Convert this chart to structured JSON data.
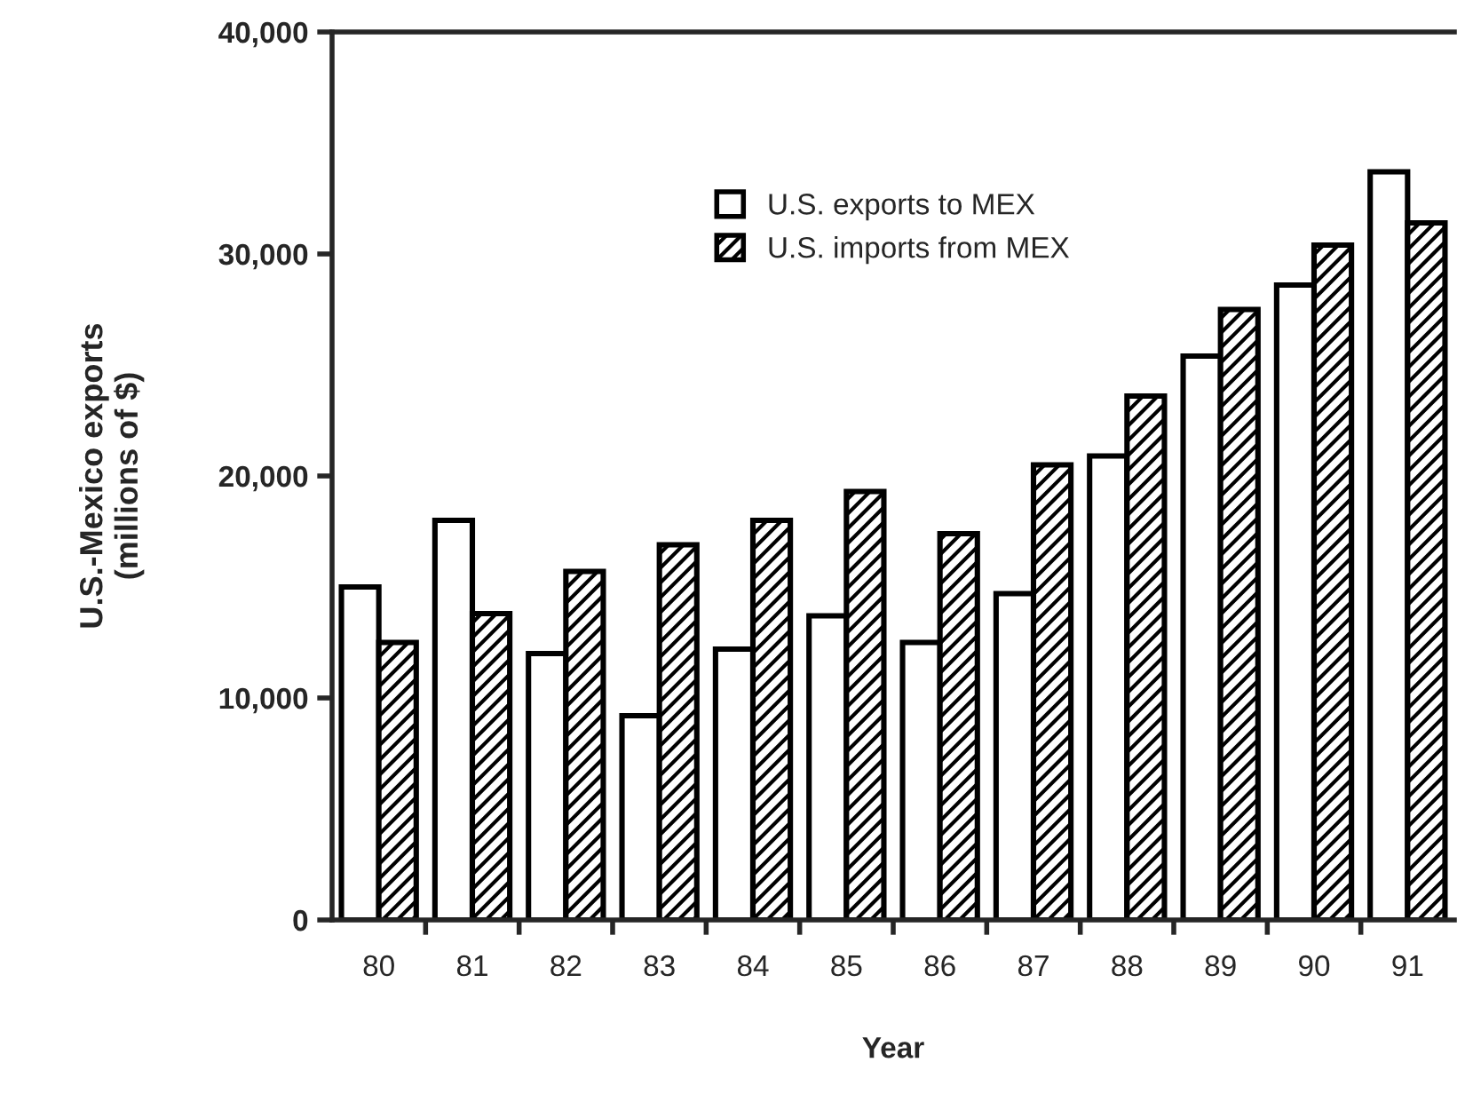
{
  "chart_data": {
    "type": "bar",
    "xlabel": "Year",
    "ylabel": "U.S.-Mexico exports\n(millions of $)",
    "categories": [
      "80",
      "81",
      "82",
      "83",
      "84",
      "85",
      "86",
      "87",
      "88",
      "89",
      "90",
      "91"
    ],
    "series": [
      {
        "name": "U.S. exports to MEX",
        "color": "#ffffff",
        "values": [
          15000,
          18000,
          12000,
          9200,
          12200,
          13700,
          12500,
          14700,
          20900,
          25400,
          28600,
          33700
        ]
      },
      {
        "name": "U.S. imports from MEX",
        "color": "#000000",
        "values": [
          12500,
          13800,
          15700,
          16900,
          18000,
          19300,
          17400,
          20500,
          23600,
          27500,
          30400,
          31400
        ]
      }
    ],
    "ylim": [
      0,
      40000
    ],
    "yticks": [
      {
        "value": 0,
        "label": "0"
      },
      {
        "value": 10000,
        "label": "10,000"
      },
      {
        "value": 20000,
        "label": "20,000"
      },
      {
        "value": 30000,
        "label": "30,000"
      },
      {
        "value": 40000,
        "label": "40,000"
      }
    ],
    "grid": false,
    "legend": "top"
  }
}
